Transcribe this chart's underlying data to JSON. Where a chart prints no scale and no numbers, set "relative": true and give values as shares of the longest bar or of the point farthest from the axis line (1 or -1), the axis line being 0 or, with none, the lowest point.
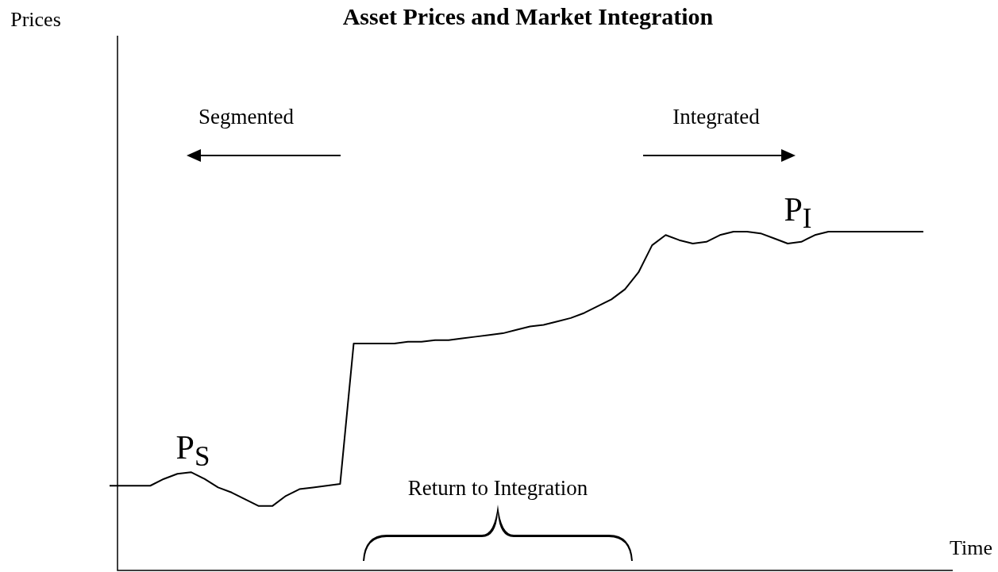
{
  "chart_data": {
    "type": "line",
    "title": "Asset Prices and Market Integration",
    "xlabel": "Time",
    "relative": true,
    "marker": "none",
    "line_style": "solid",
    "categories": [
      null,
      null,
      null,
      null,
      null,
      null,
      null,
      null,
      null,
      null,
      null,
      null,
      null,
      null,
      null,
      null,
      null,
      null,
      null,
      null,
      null,
      null,
      null,
      null,
      null,
      null,
      null,
      null,
      null,
      null,
      null,
      null,
      null,
      null,
      null,
      null,
      null,
      null,
      null,
      null,
      null,
      null,
      null,
      null,
      null,
      null,
      null,
      null,
      null,
      null,
      null,
      null,
      null,
      null,
      null,
      null,
      null,
      null,
      null,
      null,
      null
    ],
    "series": [
      {
        "color": "#000000",
        "values": [
          0.25,
          0.25,
          0.25,
          0.25,
          0.27,
          0.285,
          0.29,
          0.27,
          0.245,
          0.23,
          0.21,
          0.19,
          0.19,
          0.22,
          0.24,
          0.245,
          0.25,
          0.255,
          0.67,
          0.67,
          0.67,
          0.67,
          0.675,
          0.675,
          0.68,
          0.68,
          0.685,
          0.69,
          0.695,
          0.7,
          0.71,
          0.72,
          0.725,
          0.735,
          0.745,
          0.76,
          0.78,
          0.8,
          0.83,
          0.88,
          0.96,
          0.99,
          0.975,
          0.965,
          0.97,
          0.99,
          1.0,
          1.0,
          0.995,
          0.98,
          0.965,
          0.97,
          0.99,
          1.0,
          1.0,
          1.0,
          1.0,
          1.0,
          1.0,
          1.0,
          1.0
        ]
      }
    ],
    "annotations": [
      "Segmented",
      "Integrated",
      "P$_{S}$",
      "P$_{I}$",
      "Return to Integration",
      "Prices"
    ]
  }
}
